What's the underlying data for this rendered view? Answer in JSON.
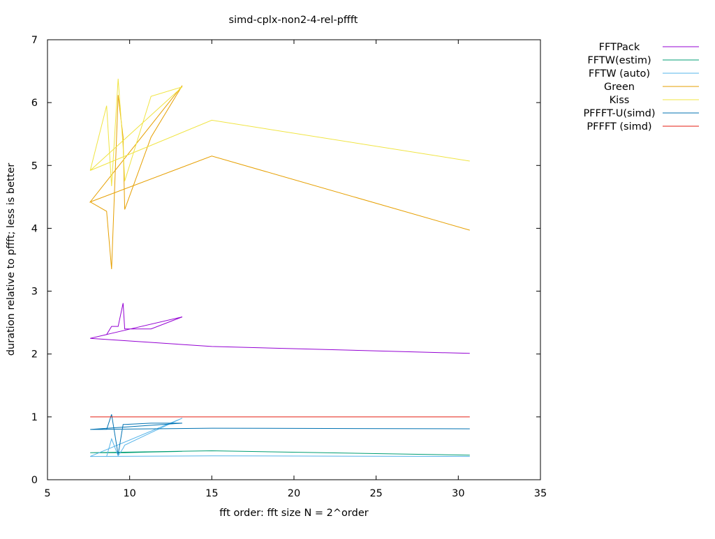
{
  "chart_data": {
    "type": "line",
    "title": "simd-cplx-non2-4-rel-pffft",
    "xlabel": "fft order: fft size N = 2^order",
    "ylabel": "duration relative to pffft; less is better",
    "xlim": [
      5,
      35
    ],
    "ylim": [
      0,
      7
    ],
    "xticks": [
      "5",
      "10",
      "15",
      "20",
      "25",
      "30",
      "35"
    ],
    "yticks": [
      "0",
      "1",
      "2",
      "3",
      "4",
      "5",
      "6",
      "7"
    ],
    "grid": false,
    "legend_position": "outside-top-right",
    "series": [
      {
        "name": "FFTPack",
        "color": "#9400d3",
        "x": [
          7.6,
          8.6,
          8.9,
          9.3,
          9.6,
          9.7,
          11.3,
          13.2,
          7.6,
          15.0,
          30.7
        ],
        "y": [
          2.25,
          2.31,
          2.44,
          2.44,
          2.81,
          2.4,
          2.4,
          2.59,
          2.25,
          2.12,
          2.01
        ]
      },
      {
        "name": "FFTW(estim)",
        "color": "#009e73",
        "x": [
          7.6,
          8.6,
          8.9,
          9.3,
          9.6,
          9.7,
          11.3,
          13.2,
          7.6,
          15.0,
          30.7
        ],
        "y": [
          0.43,
          0.43,
          0.43,
          0.43,
          0.43,
          0.43,
          0.44,
          0.45,
          0.43,
          0.46,
          0.39
        ]
      },
      {
        "name": "FFTW (auto)",
        "color": "#56b4e9",
        "x": [
          7.6,
          8.6,
          8.9,
          9.3,
          9.6,
          9.7,
          11.3,
          13.2,
          7.6,
          15.0,
          30.7
        ],
        "y": [
          0.37,
          0.37,
          0.65,
          0.38,
          0.5,
          0.55,
          0.75,
          0.98,
          0.37,
          0.38,
          0.37
        ]
      },
      {
        "name": "Green",
        "color": "#e69f00",
        "x": [
          7.6,
          8.6,
          8.9,
          9.3,
          9.6,
          9.7,
          11.3,
          13.2,
          7.6,
          15.0,
          30.7
        ],
        "y": [
          4.42,
          4.27,
          3.35,
          6.12,
          5.45,
          4.3,
          5.45,
          6.27,
          4.42,
          5.15,
          3.97
        ]
      },
      {
        "name": "Kiss",
        "color": "#f0e442",
        "x": [
          7.6,
          8.6,
          8.9,
          9.3,
          9.6,
          9.7,
          11.3,
          13.2,
          7.6,
          15.0,
          30.7
        ],
        "y": [
          4.92,
          5.95,
          4.67,
          6.38,
          5.3,
          4.75,
          6.1,
          6.25,
          4.92,
          5.72,
          5.07
        ]
      },
      {
        "name": "PFFFT-U(simd)",
        "color": "#0072b2",
        "x": [
          7.6,
          8.6,
          8.9,
          9.3,
          9.6,
          9.7,
          11.3,
          13.2,
          7.6,
          15.0,
          30.7
        ],
        "y": [
          0.8,
          0.8,
          1.04,
          0.4,
          0.88,
          0.88,
          0.9,
          0.9,
          0.8,
          0.82,
          0.81
        ]
      },
      {
        "name": "PFFFT (simd)",
        "color": "#e51e10",
        "x": [
          7.6,
          30.7
        ],
        "y": [
          1.0,
          1.0
        ]
      }
    ]
  }
}
